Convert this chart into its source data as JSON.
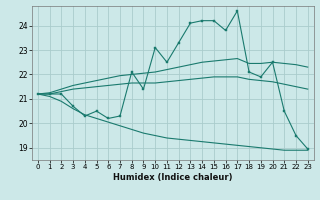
{
  "xlabel": "Humidex (Indice chaleur)",
  "bg_color": "#cce8e8",
  "grid_color": "#aacccc",
  "line_color": "#1a7a6e",
  "x": [
    0,
    1,
    2,
    3,
    4,
    5,
    6,
    7,
    8,
    9,
    10,
    11,
    12,
    13,
    14,
    15,
    16,
    17,
    18,
    19,
    20,
    21,
    22,
    23
  ],
  "y_main": [
    21.2,
    21.2,
    21.2,
    20.7,
    20.3,
    20.5,
    20.2,
    20.3,
    22.1,
    21.4,
    23.1,
    22.5,
    23.3,
    24.1,
    24.2,
    24.2,
    23.8,
    24.6,
    22.1,
    21.9,
    22.5,
    20.5,
    19.5,
    18.95
  ],
  "y_upper": [
    21.2,
    21.25,
    21.4,
    21.55,
    21.65,
    21.75,
    21.85,
    21.95,
    22.0,
    22.05,
    22.1,
    22.2,
    22.3,
    22.4,
    22.5,
    22.55,
    22.6,
    22.65,
    22.45,
    22.45,
    22.5,
    22.45,
    22.4,
    22.3
  ],
  "y_mid": [
    21.2,
    21.2,
    21.3,
    21.4,
    21.45,
    21.5,
    21.55,
    21.6,
    21.65,
    21.65,
    21.65,
    21.7,
    21.75,
    21.8,
    21.85,
    21.9,
    21.9,
    21.9,
    21.8,
    21.75,
    21.7,
    21.6,
    21.5,
    21.4
  ],
  "y_lower": [
    21.2,
    21.1,
    20.9,
    20.6,
    20.35,
    20.2,
    20.05,
    19.9,
    19.75,
    19.6,
    19.5,
    19.4,
    19.35,
    19.3,
    19.25,
    19.2,
    19.15,
    19.1,
    19.05,
    19.0,
    18.95,
    18.9,
    18.9,
    18.9
  ],
  "ylim": [
    18.5,
    24.8
  ],
  "yticks": [
    19,
    20,
    21,
    22,
    23,
    24
  ],
  "xlim": [
    -0.5,
    23.5
  ],
  "xticks": [
    0,
    1,
    2,
    3,
    4,
    5,
    6,
    7,
    8,
    9,
    10,
    11,
    12,
    13,
    14,
    15,
    16,
    17,
    18,
    19,
    20,
    21,
    22,
    23
  ],
  "xlabel_fontsize": 6.0,
  "tick_fontsize": 5.5
}
